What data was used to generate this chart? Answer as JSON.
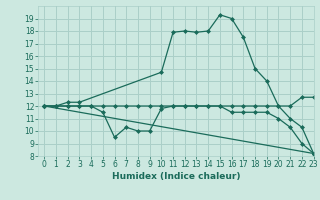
{
  "xlabel": "Humidex (Indice chaleur)",
  "bg_color": "#cce8e0",
  "grid_color": "#aacfc8",
  "line_color": "#1a6b5a",
  "xlim": [
    -0.5,
    23
  ],
  "ylim": [
    8,
    20
  ],
  "xticks": [
    0,
    1,
    2,
    3,
    4,
    5,
    6,
    7,
    8,
    9,
    10,
    11,
    12,
    13,
    14,
    15,
    16,
    17,
    18,
    19,
    20,
    21,
    22,
    23
  ],
  "yticks": [
    8,
    9,
    10,
    11,
    12,
    13,
    14,
    15,
    16,
    17,
    18,
    19
  ],
  "series": [
    {
      "x": [
        0,
        1,
        2,
        3,
        10,
        11,
        12,
        13,
        14,
        15,
        16,
        17,
        18,
        19,
        20,
        21,
        22,
        23
      ],
      "y": [
        12,
        12,
        12.3,
        12.3,
        14.7,
        17.9,
        18,
        17.9,
        18,
        19.3,
        19,
        17.5,
        15,
        14,
        12,
        11,
        10.3,
        8.2
      ]
    },
    {
      "x": [
        0,
        1,
        2,
        3,
        4,
        5,
        6,
        7,
        8,
        9,
        10,
        11,
        12,
        13,
        14,
        15,
        16,
        17,
        18,
        19,
        20,
        21,
        22,
        23
      ],
      "y": [
        12,
        12,
        12,
        12,
        12,
        12,
        12,
        12,
        12,
        12,
        12,
        12,
        12,
        12,
        12,
        12,
        12,
        12,
        12,
        12,
        12,
        12,
        12.7,
        12.7
      ]
    },
    {
      "x": [
        0,
        1,
        2,
        3,
        4,
        5,
        6,
        7,
        8,
        9,
        10,
        11,
        12,
        13,
        14,
        15,
        16,
        17,
        18,
        19,
        20,
        21,
        22,
        23
      ],
      "y": [
        12,
        12,
        12,
        12,
        12,
        11.5,
        9.5,
        10.3,
        10.0,
        10.0,
        11.8,
        12,
        12,
        12,
        12,
        12,
        11.5,
        11.5,
        11.5,
        11.5,
        11,
        10.3,
        9,
        8.2
      ]
    },
    {
      "x": [
        0,
        23
      ],
      "y": [
        12,
        8.2
      ]
    }
  ]
}
